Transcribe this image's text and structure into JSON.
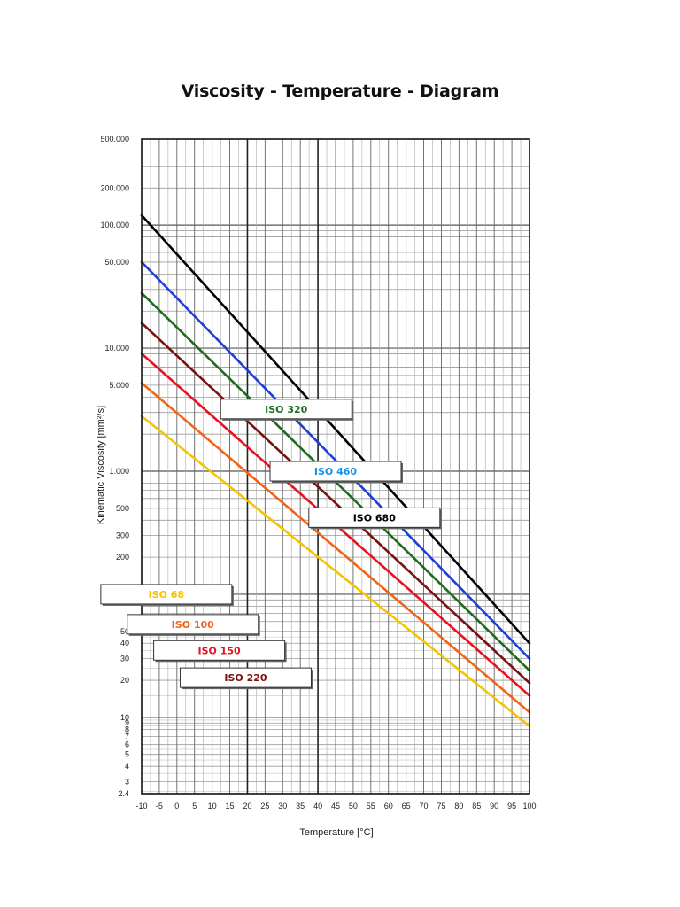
{
  "title": "Viscosity - Temperature - Diagram",
  "chart_data": {
    "type": "line",
    "title": "Viscosity - Temperature - Diagram",
    "xlabel": "Temperature  [°C]",
    "ylabel": "Kinematic Viscosity [mm²/s]",
    "x_scale": "linear",
    "y_scale": "log",
    "xlim": [
      -10,
      100
    ],
    "ylim": [
      2.4,
      500000
    ],
    "grid": true,
    "x_ticks": [
      "-10",
      "-5",
      "0",
      "5",
      "10",
      "15",
      "20",
      "25",
      "30",
      "35",
      "40",
      "45",
      "50",
      "55",
      "60",
      "65",
      "70",
      "75",
      "80",
      "85",
      "90",
      "95",
      "100"
    ],
    "y_ticks": [
      {
        "value": 500000,
        "label": "500.000"
      },
      {
        "value": 200000,
        "label": "200.000"
      },
      {
        "value": 100000,
        "label": "100.000"
      },
      {
        "value": 50000,
        "label": "50.000"
      },
      {
        "value": 10000,
        "label": "10.000"
      },
      {
        "value": 5000,
        "label": "5.000"
      },
      {
        "value": 1000,
        "label": "1.000"
      },
      {
        "value": 500,
        "label": "500"
      },
      {
        "value": 300,
        "label": "300"
      },
      {
        "value": 200,
        "label": "200"
      },
      {
        "value": 100,
        "label": "100"
      },
      {
        "value": 50,
        "label": "50"
      },
      {
        "value": 40,
        "label": "40"
      },
      {
        "value": 30,
        "label": "30"
      },
      {
        "value": 20,
        "label": "20"
      },
      {
        "value": 10,
        "label": "10"
      },
      {
        "value": 9,
        "label": "9"
      },
      {
        "value": 8,
        "label": "8"
      },
      {
        "value": 7,
        "label": "7"
      },
      {
        "value": 6,
        "label": "6"
      },
      {
        "value": 5,
        "label": "5"
      },
      {
        "value": 4,
        "label": "4"
      },
      {
        "value": 3,
        "label": "3"
      },
      {
        "value": 2.4,
        "label": "2.4"
      }
    ],
    "series": [
      {
        "name": "ISO 680",
        "color": "#000000",
        "x": [
          -10,
          100
        ],
        "y": [
          120000,
          40
        ]
      },
      {
        "name": "ISO 460",
        "color": "#1c3fd6",
        "x": [
          -10,
          100
        ],
        "y": [
          50000,
          30
        ]
      },
      {
        "name": "ISO 320",
        "color": "#1e6b1e",
        "x": [
          -10,
          100
        ],
        "y": [
          28000,
          24
        ]
      },
      {
        "name": "ISO 220",
        "color": "#7a1010",
        "x": [
          -10,
          100
        ],
        "y": [
          16000,
          19
        ]
      },
      {
        "name": "ISO 150",
        "color": "#e8121e",
        "x": [
          -10,
          100
        ],
        "y": [
          9000,
          15
        ]
      },
      {
        "name": "ISO 100",
        "color": "#f06414",
        "x": [
          -10,
          100
        ],
        "y": [
          5200,
          11
        ]
      },
      {
        "name": "ISO 68",
        "color": "#f2c400",
        "x": [
          -10,
          100
        ],
        "y": [
          2800,
          8.5
        ]
      }
    ],
    "legend_boxes": [
      {
        "label": "ISO 320",
        "color": "#1e6b1e",
        "at": [
          31,
          3200
        ]
      },
      {
        "label": "ISO 460",
        "color": "#1c90e6",
        "at": [
          45,
          1000
        ]
      },
      {
        "label": "ISO 680",
        "color": "#000000",
        "at": [
          56,
          420
        ]
      },
      {
        "label": "ISO 68",
        "color": "#f2c400",
        "at": [
          -3,
          100
        ]
      },
      {
        "label": "ISO 100",
        "color": "#f06414",
        "at": [
          4.5,
          57
        ]
      },
      {
        "label": "ISO 150",
        "color": "#e8121e",
        "at": [
          12,
          35
        ]
      },
      {
        "label": "ISO 220",
        "color": "#7a1010",
        "at": [
          19.5,
          21
        ]
      }
    ]
  }
}
